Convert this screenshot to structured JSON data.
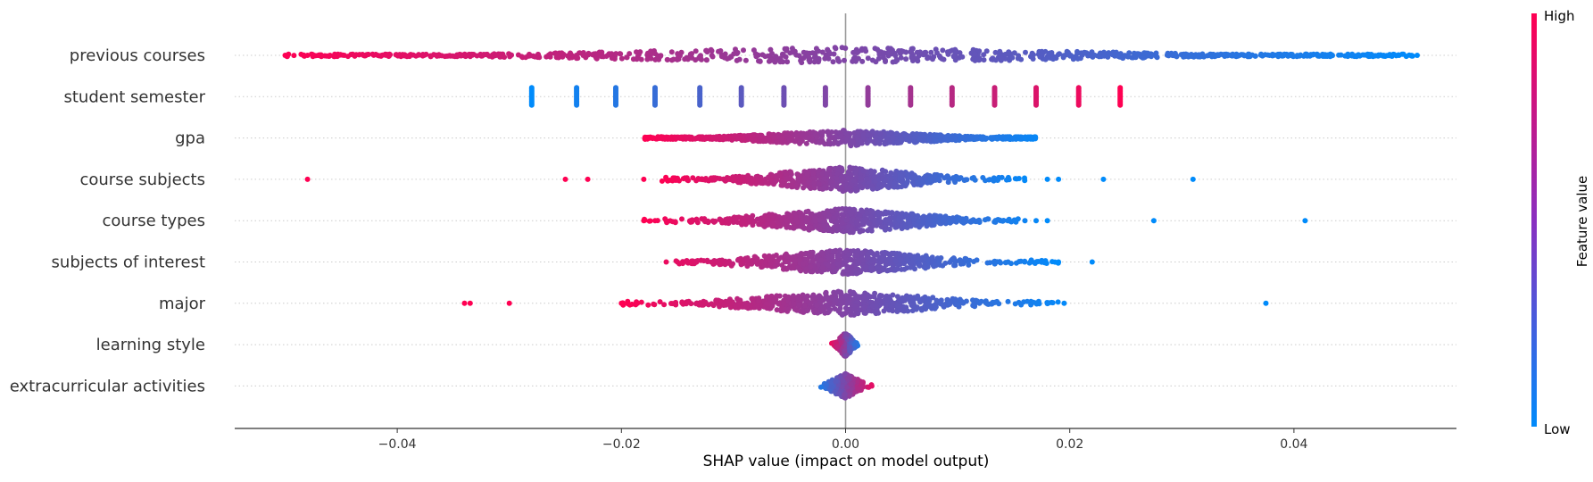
{
  "chart_data": {
    "type": "scatter",
    "subtype": "shap-beeswarm",
    "title": "",
    "xlabel": "SHAP value (impact on model output)",
    "ylabel": "",
    "xlim": [
      -0.0545,
      0.0545
    ],
    "xticks": [
      -0.04,
      -0.02,
      0.0,
      0.02,
      0.04
    ],
    "xtick_labels": [
      "−0.04",
      "−0.02",
      "0.00",
      "0.02",
      "0.04"
    ],
    "grid": false,
    "zero_line": 0,
    "colorbar": {
      "label": "Feature value",
      "high_label": "High",
      "low_label": "Low",
      "low_color": "#008bfb",
      "high_color": "#ff0052"
    },
    "features": [
      {
        "name": "previous courses",
        "range": [
          -0.05,
          0.051
        ],
        "density": "dense",
        "color_direction": "negative-is-high",
        "outliers": [
          -0.05,
          -0.048,
          -0.046,
          -0.043,
          0.043,
          0.047,
          0.048,
          0.051
        ]
      },
      {
        "name": "student semester",
        "range": [
          -0.028,
          0.025
        ],
        "density": "discrete",
        "color_direction": "positive-is-high",
        "discrete_values": [
          -0.028,
          -0.024,
          -0.0205,
          -0.017,
          -0.013,
          -0.0093,
          -0.0055,
          -0.0018,
          0.002,
          0.0058,
          0.0095,
          0.0133,
          0.017,
          0.0208,
          0.0245
        ]
      },
      {
        "name": "gpa",
        "range": [
          -0.018,
          0.017
        ],
        "density": "dense",
        "color_direction": "negative-is-high",
        "outliers": []
      },
      {
        "name": "course subjects",
        "range": [
          -0.0165,
          0.016
        ],
        "density": "centered",
        "color_direction": "negative-is-high",
        "outliers": [
          -0.048,
          -0.025,
          -0.023,
          -0.018,
          -0.016,
          -0.013,
          0.018,
          0.019,
          0.023,
          0.031
        ]
      },
      {
        "name": "course types",
        "range": [
          -0.018,
          0.0155
        ],
        "density": "centered",
        "color_direction": "negative-is-high",
        "outliers": [
          -0.018,
          -0.017,
          -0.016,
          0.016,
          0.017,
          0.018,
          0.0275,
          0.041
        ]
      },
      {
        "name": "subjects of interest",
        "range": [
          -0.0155,
          0.019
        ],
        "density": "centered",
        "color_direction": "negative-is-high",
        "outliers": [
          -0.016,
          -0.015,
          0.0145,
          0.0165,
          0.019,
          0.022
        ]
      },
      {
        "name": "major",
        "range": [
          -0.02,
          0.019
        ],
        "density": "centered",
        "color_direction": "negative-is-high",
        "outliers": [
          -0.034,
          -0.0335,
          -0.03,
          -0.02,
          0.0195,
          0.0375
        ]
      },
      {
        "name": "learning style",
        "range": [
          -0.0014,
          0.0014
        ],
        "density": "tight",
        "color_direction": "negative-is-high",
        "outliers": []
      },
      {
        "name": "extracurricular activities",
        "range": [
          -0.0022,
          0.003
        ],
        "density": "tight",
        "color_direction": "positive-is-high",
        "outliers": []
      }
    ]
  }
}
